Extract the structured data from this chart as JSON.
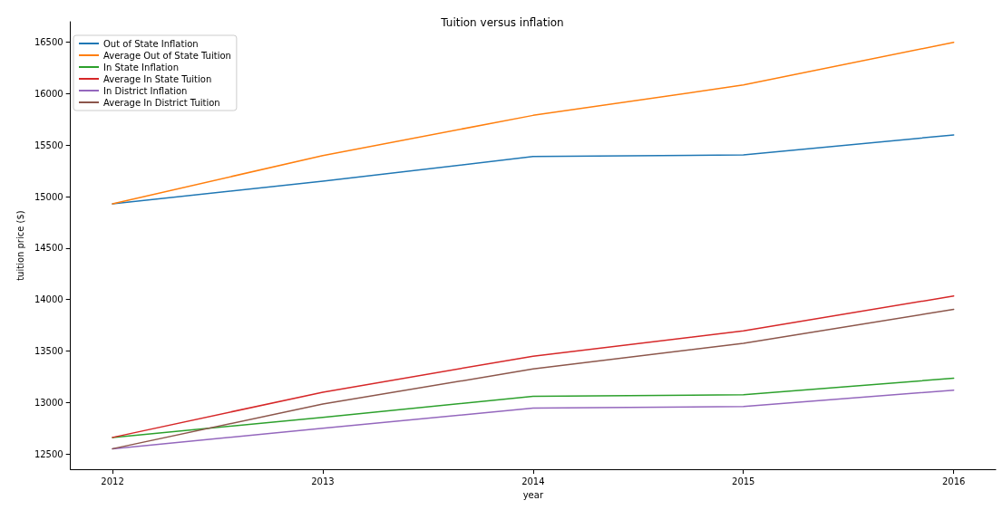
{
  "chart_data": {
    "type": "line",
    "title": "Tuition versus inflation",
    "xlabel": "year",
    "ylabel": "tuition price ($)",
    "x": [
      2012,
      2013,
      2014,
      2015,
      2016
    ],
    "xlim": [
      2011.8,
      2016.2
    ],
    "xticks": [
      2012,
      2013,
      2014,
      2015,
      2016
    ],
    "ylim": [
      12350,
      16700
    ],
    "yticks": [
      12500,
      13000,
      13500,
      14000,
      14500,
      15000,
      15500,
      16000,
      16500
    ],
    "grid": false,
    "legend": "top left",
    "series": [
      {
        "name": "Out of State Inflation",
        "color": "#1f77b4",
        "values": [
          14930,
          15150,
          15390,
          15405,
          15600
        ]
      },
      {
        "name": "Average Out of State Tuition",
        "color": "#ff7f0e",
        "values": [
          14930,
          15400,
          15790,
          16085,
          16500
        ]
      },
      {
        "name": "In State Inflation",
        "color": "#2ca02c",
        "values": [
          12660,
          12855,
          13060,
          13075,
          13235
        ]
      },
      {
        "name": "Average In State Tuition",
        "color": "#d62728",
        "values": [
          12660,
          13100,
          13450,
          13695,
          14035
        ]
      },
      {
        "name": "In District Inflation",
        "color": "#9467bd",
        "values": [
          12550,
          12750,
          12945,
          12960,
          13120
        ]
      },
      {
        "name": "Average In District Tuition",
        "color": "#8c564b",
        "values": [
          12550,
          12985,
          13325,
          13575,
          13905
        ]
      }
    ]
  }
}
